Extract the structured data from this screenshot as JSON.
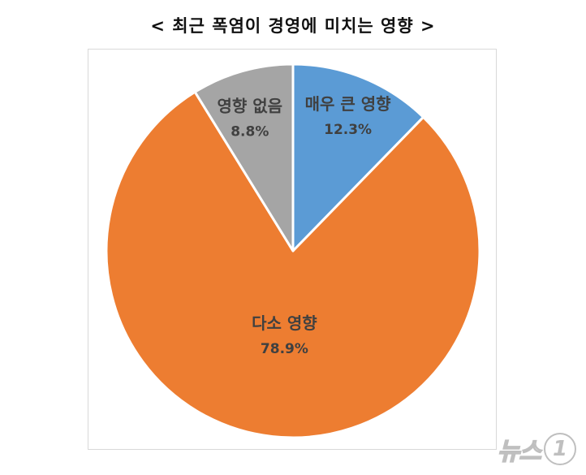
{
  "chart_data": {
    "type": "pie",
    "title": "< 최근 폭염이 경영에 미치는 영향 >",
    "start_angle_deg": 0,
    "direction": "clockwise",
    "slices": [
      {
        "label": "매우 큰 영향",
        "value": 12.3,
        "value_label": "12.3%",
        "color": "#5b9bd5"
      },
      {
        "label": "다소 영향",
        "value": 78.9,
        "value_label": "78.9%",
        "color": "#ed7d31"
      },
      {
        "label": "영향 없음",
        "value": 8.8,
        "value_label": "8.8%",
        "color": "#a5a5a5"
      }
    ]
  },
  "watermark": {
    "text": "뉴스",
    "badge": "1"
  }
}
